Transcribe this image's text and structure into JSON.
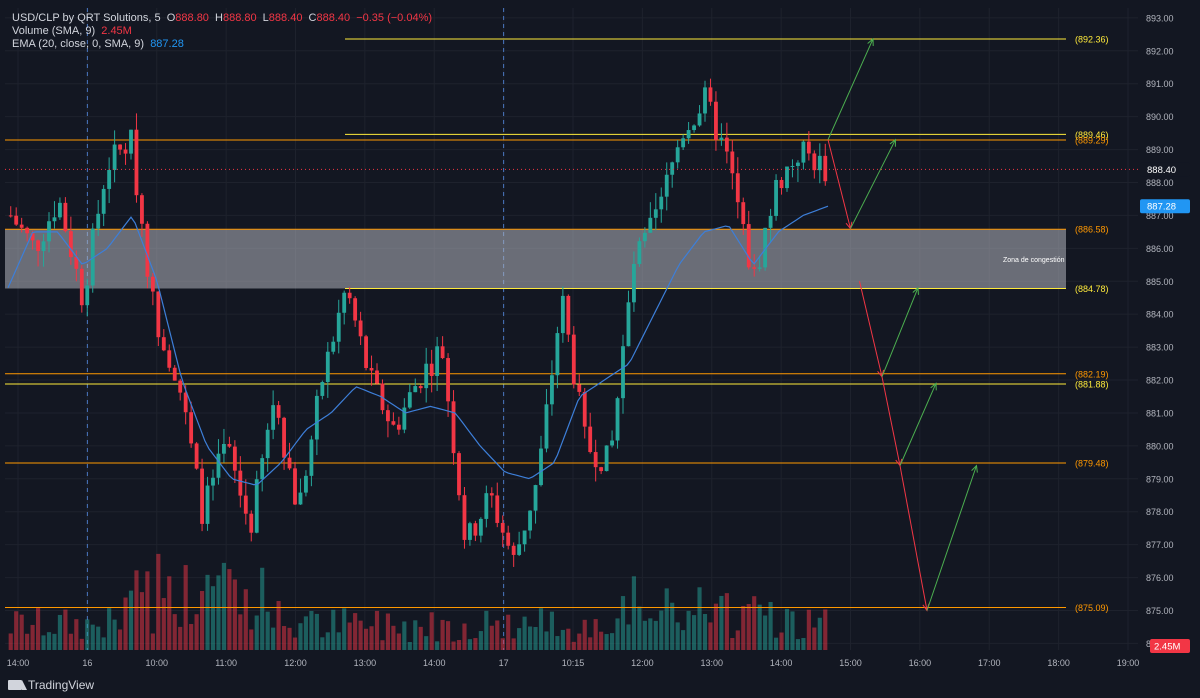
{
  "header": {
    "symbol": "USD/CLP by QRT Solutions",
    "interval": "5",
    "ohlc": [
      {
        "label": "O",
        "value": "888.80"
      },
      {
        "label": "H",
        "value": "888.80"
      },
      {
        "label": "L",
        "value": "888.40"
      },
      {
        "label": "C",
        "value": "888.40"
      }
    ],
    "change": "−0.35 (−0.04%)",
    "volume_label": "Volume (SMA, 9)",
    "volume_value": "2.45M",
    "ema_label": "EMA (20, close, 0, SMA, 9)",
    "ema_value": "887.28"
  },
  "footer": {
    "brand": "TradingView"
  },
  "colors": {
    "background": "#131722",
    "up": "#26a69a",
    "down": "#f23645",
    "ema": "#2962ff",
    "level_orange": "#ff9800",
    "level_yellow": "#ffeb3b",
    "arrow_up": "#4caf50",
    "arrow_down": "#f23645",
    "zone": "#b2b5be"
  },
  "chart_data": {
    "type": "candlestick",
    "y_axis": {
      "range": [
        873.8,
        893.3
      ],
      "ticks": [
        "874.00",
        "875.00",
        "876.00",
        "877.00",
        "878.00",
        "879.00",
        "880.00",
        "881.00",
        "882.00",
        "883.00",
        "884.00",
        "885.00",
        "886.00",
        "887.00",
        "888.00",
        "889.00",
        "890.00",
        "891.00",
        "892.00",
        "893.00"
      ]
    },
    "x_axis": {
      "labels": [
        "14:00",
        "16",
        "10:00",
        "11:00",
        "12:00",
        "13:00",
        "14:00",
        "17",
        "10:15",
        "12:00",
        "13:00",
        "14:00",
        "15:00",
        "16:00",
        "17:00",
        "18:00",
        "19:00"
      ],
      "session_breaks": [
        "16",
        "17"
      ]
    },
    "levels": [
      {
        "price": 892.36,
        "label": "(892.36)",
        "color": "yellow"
      },
      {
        "price": 889.46,
        "label": "(889.46)",
        "color": "yellow"
      },
      {
        "price": 889.29,
        "label": "(889.29)",
        "color": "orange"
      },
      {
        "price": 886.58,
        "label": "(886.58)",
        "color": "orange"
      },
      {
        "price": 884.78,
        "label": "(884.78)",
        "color": "yellow"
      },
      {
        "price": 882.19,
        "label": "(882.19)",
        "color": "orange"
      },
      {
        "price": 881.88,
        "label": "(881.88)",
        "color": "yellow"
      },
      {
        "price": 879.48,
        "label": "(879.48)",
        "color": "orange"
      },
      {
        "price": 875.09,
        "label": "(875.09)",
        "color": "orange"
      }
    ],
    "zone": {
      "from": 884.78,
      "to": 886.58,
      "label": "Zona de congestión"
    },
    "last_price": {
      "value": 888.4,
      "label": "888.40"
    },
    "ema_last": {
      "value": 887.28,
      "label": "887.28"
    },
    "volume_last": {
      "label": "2.45M"
    },
    "price_path": [
      887.0,
      886.0,
      887.5,
      884.5,
      888.5,
      889.3,
      884.0,
      882.0,
      878.0,
      880.0,
      877.5,
      881.5,
      878.0,
      882.0,
      884.8,
      882.0,
      880.5,
      882.0,
      883.0,
      877.0,
      878.5,
      876.5,
      879.0,
      884.5,
      880.0,
      879.5,
      885.5,
      887.0,
      889.5,
      890.5,
      888.5,
      885.0,
      888.0,
      889.0,
      888.4
    ],
    "ema_path": [
      884.8,
      886.5,
      886.5,
      885.5,
      886.0,
      887.0,
      885.0,
      882.0,
      880.0,
      879.0,
      878.8,
      879.5,
      880.5,
      881.0,
      881.8,
      881.5,
      881.0,
      881.2,
      881.0,
      880.0,
      879.2,
      879.0,
      879.5,
      881.5,
      882.0,
      882.5,
      884.0,
      885.5,
      886.5,
      886.7,
      885.5,
      886.5,
      887.0,
      887.28
    ],
    "projection_arrows": [
      {
        "from": [
          0,
          889.3
        ],
        "to": [
          1,
          892.36
        ],
        "direction": "up"
      },
      {
        "from": [
          0,
          889.3
        ],
        "to": [
          0.5,
          886.6
        ],
        "direction": "down"
      },
      {
        "from": [
          0.5,
          886.6
        ],
        "to": [
          1.5,
          889.3
        ],
        "direction": "up"
      },
      {
        "from": [
          0.7,
          885.0
        ],
        "to": [
          1.2,
          882.1
        ],
        "direction": "down"
      },
      {
        "from": [
          1.2,
          882.1
        ],
        "to": [
          2.0,
          884.8
        ],
        "direction": "up"
      },
      {
        "from": [
          1.2,
          882.1
        ],
        "to": [
          1.6,
          879.4
        ],
        "direction": "down"
      },
      {
        "from": [
          1.6,
          879.4
        ],
        "to": [
          2.4,
          881.9
        ],
        "direction": "up"
      },
      {
        "from": [
          1.6,
          879.4
        ],
        "to": [
          2.2,
          875.0
        ],
        "direction": "down"
      },
      {
        "from": [
          2.2,
          875.0
        ],
        "to": [
          3.3,
          879.4
        ],
        "direction": "up"
      }
    ]
  }
}
